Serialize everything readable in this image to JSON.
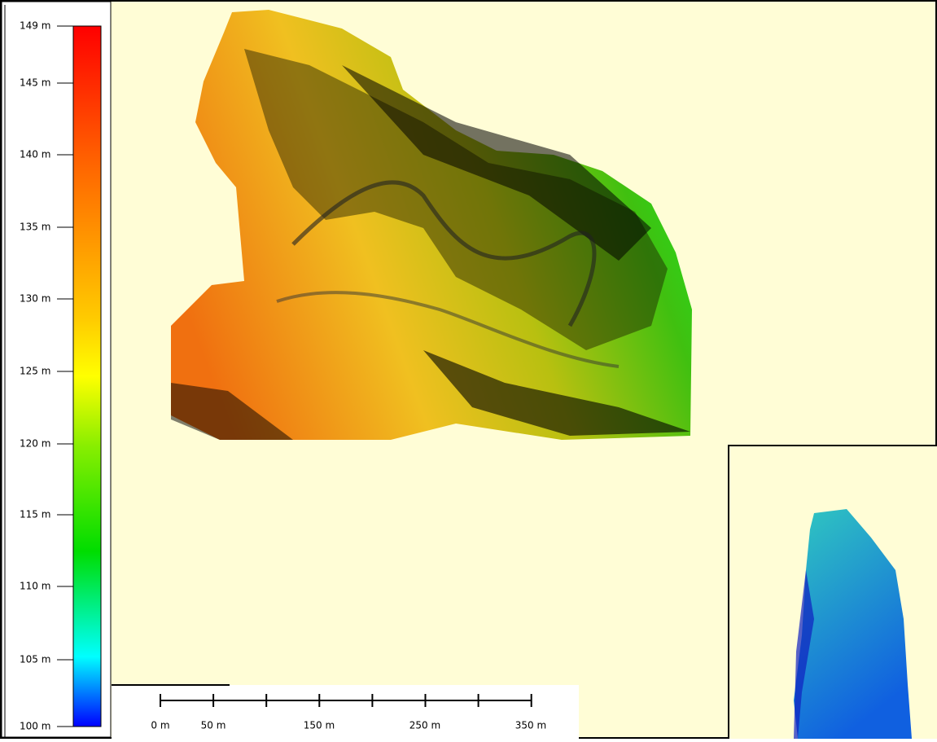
{
  "legend": {
    "labels": [
      "149 m",
      "145 m",
      "140 m",
      "135 m",
      "130 m",
      "125 m",
      "120 m",
      "115 m",
      "110 m",
      "105 m",
      "100 m"
    ]
  },
  "scale_bar": {
    "labels": [
      "0 m",
      "50 m",
      "150 m",
      "250 m",
      "350 m"
    ]
  }
}
